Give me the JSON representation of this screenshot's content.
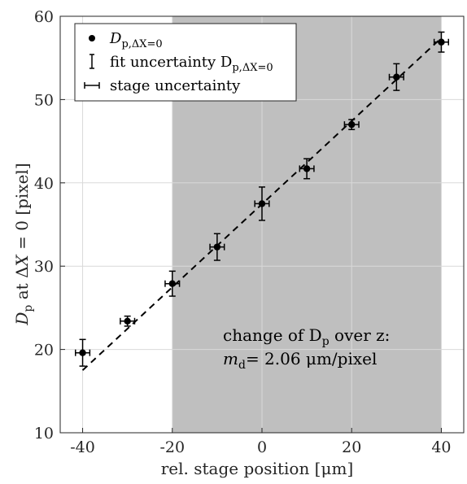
{
  "chart_data": {
    "type": "scatter",
    "title": "",
    "xlabel": "rel. stage position [μm]",
    "ylabel": "D_p at ΔX = 0 [pixel]",
    "xlim": [
      -45,
      45
    ],
    "ylim": [
      10,
      60
    ],
    "xticks": [
      -40,
      -20,
      0,
      20,
      40
    ],
    "xtick_labels": [
      "-40",
      "-20",
      "0",
      "20",
      "40"
    ],
    "yticks": [
      10,
      20,
      30,
      40,
      50,
      60
    ],
    "ytick_labels": [
      "10",
      "20",
      "30",
      "40",
      "50",
      "60"
    ],
    "grid": true,
    "shaded_region": {
      "x_from": -20,
      "x_to": 40,
      "color": "#bfbfbf"
    },
    "series": [
      {
        "name": "D_p,ΔX=0",
        "x": [
          -40,
          -30,
          -20,
          -10,
          0,
          10,
          20,
          30,
          40
        ],
        "y": [
          19.6,
          23.4,
          27.9,
          32.3,
          37.5,
          41.7,
          47.0,
          52.7,
          56.9
        ],
        "y_err": [
          1.6,
          0.6,
          1.5,
          1.6,
          2.0,
          1.2,
          0.6,
          1.6,
          1.2
        ],
        "x_err": [
          1.6,
          1.6,
          1.6,
          1.6,
          1.6,
          1.6,
          1.6,
          1.6,
          1.6
        ]
      }
    ],
    "fit_line": {
      "style": "dashed",
      "x": [
        -40,
        40
      ],
      "y": [
        17.5,
        57.4
      ]
    },
    "legend": {
      "position": "top-left",
      "entries": [
        {
          "marker": "dot",
          "label_main": "D",
          "label_sub": "p,ΔX=0"
        },
        {
          "marker": "vertical-errorbar",
          "label_main": "fit uncertainty D",
          "label_sub": "p,ΔX=0"
        },
        {
          "marker": "horizontal-errorbar",
          "label_main": "stage uncertainty",
          "label_sub": ""
        }
      ]
    },
    "annotation": {
      "line1_prefix": "change of D",
      "line1_sub": "p",
      "line1_suffix": " over z:",
      "line2_prefix": "m",
      "line2_sub": "d",
      "line2_suffix": "= 2.06 μm/pixel"
    },
    "colors": {
      "marker": "#000000",
      "shade": "#bfbfbf",
      "grid": "#d9d9d9",
      "axis": "#262626"
    }
  }
}
